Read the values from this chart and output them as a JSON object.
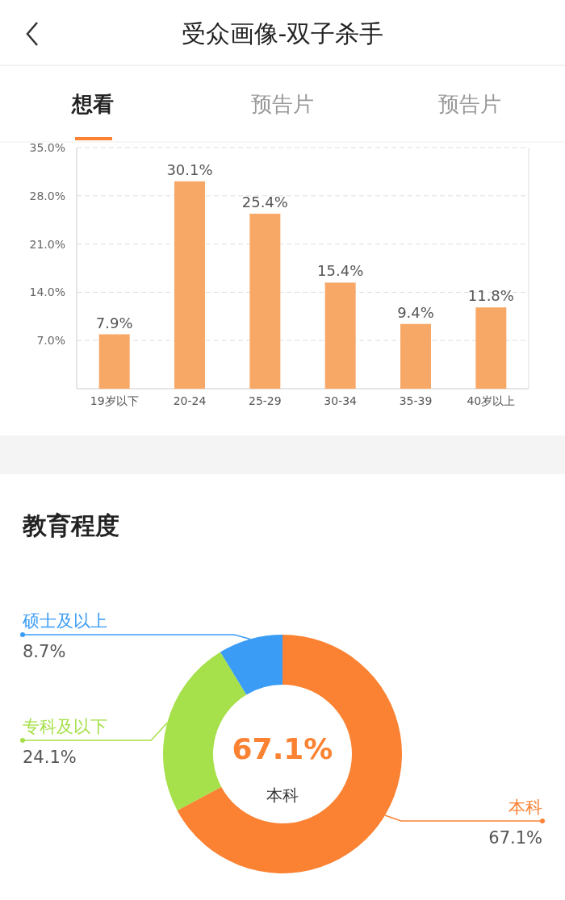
{
  "chart_data": [
    {
      "type": "bar",
      "title": "受众画像-双子杀手",
      "annotations": [
        "想看",
        "预告片",
        "预告片"
      ],
      "categories": [
        "19岁以下",
        "20-24",
        "25-29",
        "30-34",
        "35-39",
        "40岁以上"
      ],
      "values": [
        7.9,
        30.1,
        25.4,
        15.4,
        9.4,
        11.8
      ],
      "value_labels": [
        "7.9%",
        "30.1%",
        "25.4%",
        "15.4%",
        "9.4%",
        "11.8%"
      ],
      "color": "#f8a866",
      "ylim": [
        0,
        35
      ],
      "yticks": [
        {
          "value": 7,
          "label": "7.0%"
        },
        {
          "value": 14,
          "label": "14.0%"
        },
        {
          "value": 21,
          "label": "21.0%"
        },
        {
          "value": 28,
          "label": "28.0%"
        },
        {
          "value": 35,
          "label": "35.0%"
        }
      ],
      "grid": "y"
    },
    {
      "type": "donut",
      "title": "教育程度",
      "annotations": [
        "67.1%",
        "本科"
      ],
      "categories": [
        "本科",
        "专科及以下",
        "硕士及以上"
      ],
      "values": [
        67.1,
        24.1,
        8.7
      ],
      "value_labels": [
        "67.1%",
        "24.1%",
        "8.7%"
      ],
      "colors": [
        "#fa8232",
        "#a6e04a",
        "#3a9cf5"
      ]
    }
  ]
}
